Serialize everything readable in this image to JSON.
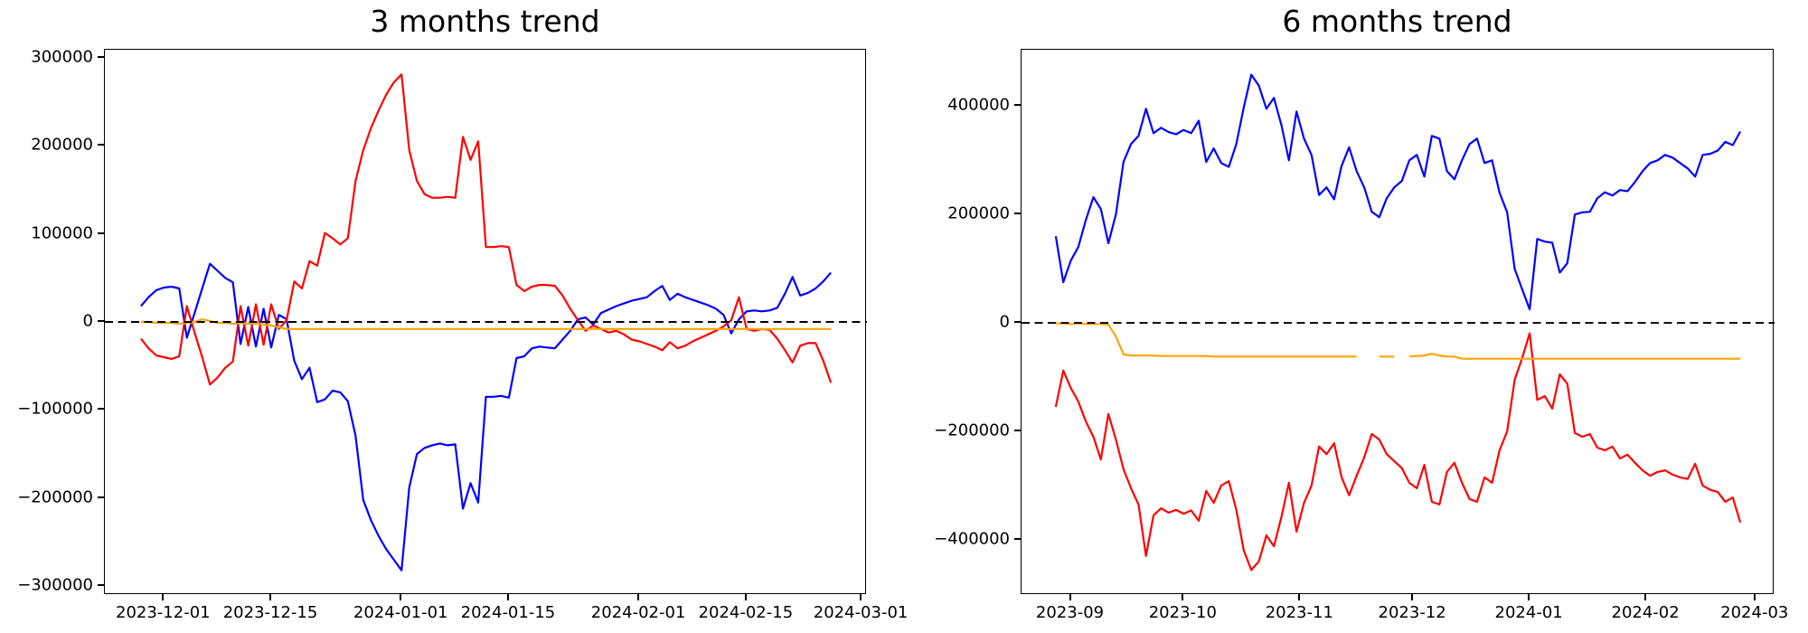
{
  "figure_background": "#ffffff",
  "chart_data": [
    {
      "type": "line",
      "title": "3 months trend",
      "subtitle": "",
      "xlabel": "",
      "ylabel": "",
      "grid": false,
      "legend": null,
      "x_unit": "days",
      "x_start_date": "2023-11-28",
      "x_step_days": 1,
      "xlim": [
        -4.7,
        94.7
      ],
      "ylim": [
        -310000,
        309000
      ],
      "zero_line": {
        "style": "dashed",
        "color": "#000000",
        "y": 0
      },
      "x_ticks": [
        {
          "day": 3,
          "label": "2023-12-01"
        },
        {
          "day": 17,
          "label": "2023-12-15"
        },
        {
          "day": 34,
          "label": "2024-01-01"
        },
        {
          "day": 48,
          "label": "2024-01-15"
        },
        {
          "day": 65,
          "label": "2024-02-01"
        },
        {
          "day": 79,
          "label": "2024-02-15"
        },
        {
          "day": 94,
          "label": "2024-03-01"
        }
      ],
      "y_ticks": [
        {
          "v": 300000,
          "label": "300000"
        },
        {
          "v": 200000,
          "label": "200000"
        },
        {
          "v": 100000,
          "label": "100000"
        },
        {
          "v": 0,
          "label": "0"
        },
        {
          "v": -100000,
          "label": "−100000"
        },
        {
          "v": -200000,
          "label": "−200000"
        },
        {
          "v": -300000,
          "label": "−300000"
        }
      ],
      "series": [
        {
          "name": "blue-line",
          "color": "#0000ff",
          "width": 2.2,
          "values": [
            18000,
            28000,
            36000,
            39000,
            40000,
            38000,
            -18000,
            10000,
            38000,
            66000,
            58000,
            50000,
            45000,
            -25000,
            17000,
            -28000,
            15000,
            -29000,
            8000,
            3000,
            -44000,
            -65000,
            -52000,
            -91000,
            -88000,
            -78000,
            -80000,
            -90000,
            -129000,
            -202000,
            -225000,
            -243000,
            -258000,
            -270000,
            -282000,
            -188000,
            -150000,
            -143000,
            -140000,
            -138000,
            -140000,
            -139000,
            -212000,
            -183000,
            -205000,
            -85000,
            -85000,
            -84000,
            -86000,
            -41000,
            -39000,
            -30000,
            -28000,
            -29000,
            -30000,
            -20000,
            -10000,
            3000,
            5000,
            -3000,
            10000,
            14000,
            18000,
            21000,
            24000,
            26000,
            28000,
            35000,
            41000,
            25000,
            32000,
            28000,
            25000,
            22000,
            19000,
            15000,
            8000,
            -13000,
            3000,
            12000,
            13000,
            12000,
            13000,
            16000,
            32000,
            51000,
            30000,
            33000,
            38000,
            46000,
            56000
          ]
        },
        {
          "name": "red-line",
          "color": "#ff0000",
          "width": 2.2,
          "values": [
            -19000,
            -30000,
            -38000,
            -40000,
            -42000,
            -39000,
            18000,
            -12000,
            -40000,
            -71000,
            -63000,
            -52000,
            -45000,
            18000,
            -27000,
            20000,
            -26000,
            20000,
            -8000,
            2000,
            46000,
            38000,
            69000,
            64000,
            101000,
            95000,
            88000,
            95000,
            160000,
            195000,
            220000,
            240000,
            258000,
            272000,
            281000,
            195000,
            160000,
            145000,
            141000,
            141000,
            142000,
            141000,
            210000,
            184000,
            205000,
            85000,
            85000,
            86000,
            85000,
            42000,
            35000,
            40000,
            42000,
            42000,
            41000,
            30000,
            15000,
            2000,
            -10000,
            -4000,
            -8000,
            -12000,
            -10000,
            -14000,
            -20000,
            -22000,
            -25000,
            -28000,
            -32000,
            -23000,
            -30000,
            -27000,
            -22000,
            -18000,
            -14000,
            -10000,
            -5000,
            2000,
            28000,
            -8000,
            -10000,
            -8000,
            -9000,
            -19000,
            -32000,
            -46000,
            -27000,
            -24000,
            -24000,
            -44000,
            -69000
          ]
        },
        {
          "name": "orange-line",
          "color": "#ffa500",
          "width": 2.2,
          "values": [
            0,
            0,
            -1000,
            -1000,
            -1000,
            -2000,
            -1000,
            0,
            3000,
            1000,
            -1000,
            -1000,
            -2000,
            -1000,
            -2000,
            -2000,
            -3000,
            -4000,
            -6000,
            -8000,
            -8000,
            -8000,
            -8000,
            -8000,
            -8000,
            -8000,
            -8000,
            -8000,
            -8000,
            -8000,
            -8000,
            -8000,
            -8000,
            -8000,
            -8000,
            -8000,
            -8000,
            -8000,
            -8000,
            -8000,
            -8000,
            -8000,
            -8000,
            -8000,
            -8000,
            -8000,
            -8000,
            -8000,
            -8000,
            -8000,
            -8000,
            -8000,
            -8000,
            -8000,
            -8000,
            -8000,
            -8000,
            -8000,
            -8000,
            -8000,
            -8000,
            -8000,
            -8000,
            -8000,
            -8000,
            -8000,
            -8000,
            -8000,
            -8000,
            -8000,
            -8000,
            -8000,
            -8000,
            -8000,
            -8000,
            -8000,
            -8000,
            -8000,
            -8000,
            -8000,
            -8000,
            -8000,
            -8000,
            -8000,
            -8000,
            -8000,
            -8000,
            -8000,
            -8000,
            -8000,
            -8000
          ]
        }
      ]
    },
    {
      "type": "line",
      "title": "6 months trend",
      "subtitle": "",
      "xlabel": "",
      "ylabel": "",
      "grid": false,
      "legend": null,
      "x_unit": "days",
      "x_start_date": "2023-08-28",
      "x_step_days": 2,
      "xlim": [
        -9.1,
        191.1
      ],
      "ylim": [
        -502000,
        504000
      ],
      "zero_line": {
        "style": "dashed",
        "color": "#000000",
        "y": 0
      },
      "x_ticks": [
        {
          "day": 4,
          "label": "2023-09"
        },
        {
          "day": 34,
          "label": "2023-10"
        },
        {
          "day": 65,
          "label": "2023-11"
        },
        {
          "day": 95,
          "label": "2023-12"
        },
        {
          "day": 126,
          "label": "2024-01"
        },
        {
          "day": 157,
          "label": "2024-02"
        },
        {
          "day": 186,
          "label": "2024-03"
        }
      ],
      "y_ticks": [
        {
          "v": 400000,
          "label": "400000"
        },
        {
          "v": 200000,
          "label": "200000"
        },
        {
          "v": 0,
          "label": "0"
        },
        {
          "v": -200000,
          "label": "−200000"
        },
        {
          "v": -400000,
          "label": "−400000"
        }
      ],
      "series": [
        {
          "name": "blue-line",
          "color": "#0000ff",
          "width": 2.2,
          "values": [
            160000,
            75000,
            115000,
            140000,
            190000,
            232000,
            210000,
            147000,
            200000,
            297000,
            330000,
            345000,
            395000,
            350000,
            360000,
            352000,
            348000,
            356000,
            350000,
            373000,
            297000,
            322000,
            295000,
            288000,
            330000,
            398000,
            458000,
            438000,
            395000,
            415000,
            365000,
            300000,
            390000,
            340000,
            310000,
            236000,
            250000,
            228000,
            290000,
            324000,
            280000,
            250000,
            205000,
            195000,
            230000,
            250000,
            262000,
            300000,
            310000,
            270000,
            345000,
            340000,
            280000,
            265000,
            300000,
            330000,
            340000,
            295000,
            300000,
            240000,
            204000,
            100000,
            62000,
            25000,
            155000,
            150000,
            148000,
            93000,
            110000,
            200000,
            204000,
            205000,
            230000,
            241000,
            235000,
            245000,
            243000,
            260000,
            280000,
            295000,
            300000,
            310000,
            305000,
            295000,
            285000,
            270000,
            310000,
            312000,
            318000,
            334000,
            328000,
            353000
          ]
        },
        {
          "name": "red-line",
          "color": "#ff0000",
          "width": 2.2,
          "values": [
            -155000,
            -88000,
            -120000,
            -145000,
            -182000,
            -210000,
            -252000,
            -168000,
            -215000,
            -270000,
            -305000,
            -335000,
            -430000,
            -355000,
            -342000,
            -350000,
            -345000,
            -352000,
            -346000,
            -365000,
            -310000,
            -332000,
            -300000,
            -292000,
            -345000,
            -420000,
            -456000,
            -440000,
            -392000,
            -412000,
            -358000,
            -295000,
            -385000,
            -332000,
            -300000,
            -228000,
            -242000,
            -222000,
            -285000,
            -318000,
            -282000,
            -248000,
            -205000,
            -215000,
            -242000,
            -255000,
            -268000,
            -295000,
            -305000,
            -262000,
            -330000,
            -335000,
            -275000,
            -258000,
            -295000,
            -325000,
            -330000,
            -285000,
            -295000,
            -235000,
            -200000,
            -105000,
            -65000,
            -19000,
            -142000,
            -135000,
            -158000,
            -95000,
            -112000,
            -203000,
            -210000,
            -205000,
            -230000,
            -235000,
            -228000,
            -250000,
            -243000,
            -258000,
            -272000,
            -282000,
            -275000,
            -272000,
            -280000,
            -285000,
            -288000,
            -260000,
            -300000,
            -308000,
            -312000,
            -330000,
            -322000,
            -368000
          ]
        },
        {
          "name": "orange-line",
          "color": "#ffa500",
          "width": 2.2,
          "values": [
            -1000,
            -1000,
            -2000,
            -1000,
            -2000,
            -2000,
            -2000,
            -3000,
            -25000,
            -58000,
            -60000,
            -60000,
            -60000,
            -60000,
            -61000,
            -61000,
            -61000,
            -61000,
            -61000,
            -61000,
            -61000,
            -62000,
            -62000,
            -62000,
            -62000,
            -62000,
            -62000,
            -62000,
            -62000,
            -62000,
            -62000,
            -62000,
            -62000,
            -62000,
            -62000,
            -62000,
            -62000,
            -62000,
            -62000,
            -62000,
            -62000,
            null,
            null,
            -62000,
            -62000,
            -62000,
            null,
            -62000,
            -61000,
            -60000,
            -57000,
            -60000,
            -62000,
            -62000,
            -66000,
            -66000,
            -66000,
            -66000,
            -66000,
            -66000,
            -66000,
            -66000,
            -66000,
            -66000,
            -66000,
            -66000,
            -66000,
            -66000,
            -66000,
            -66000,
            -66000,
            -66000,
            -66000,
            -66000,
            -66000,
            -66000,
            -66000,
            -66000,
            -66000,
            -66000,
            -66000,
            -66000,
            -66000,
            -66000,
            -66000,
            -66000,
            -66000,
            -66000,
            -66000,
            -66000,
            -66000,
            -66000
          ]
        }
      ]
    }
  ]
}
